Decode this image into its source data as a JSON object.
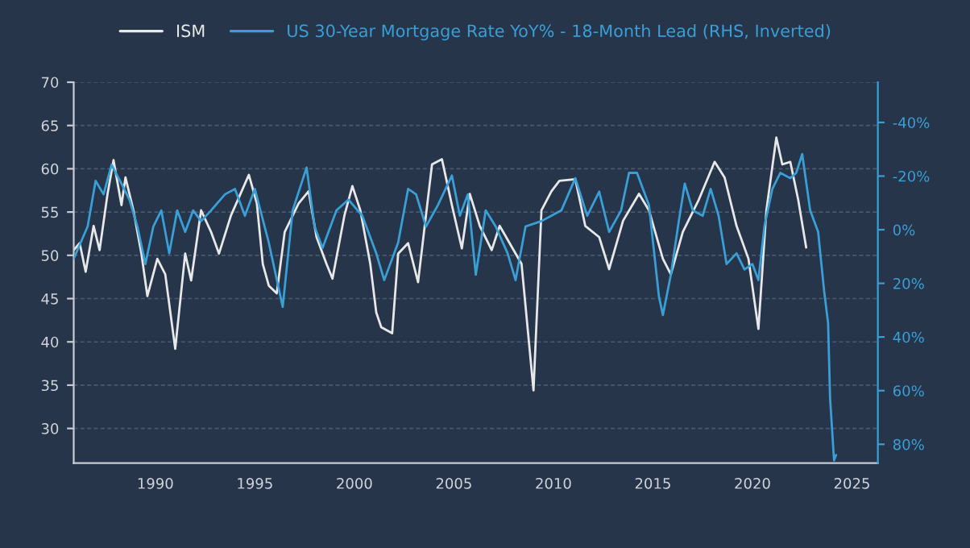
{
  "chart_data": {
    "type": "line",
    "xlim": [
      1985.9,
      2026.3
    ],
    "xticks": [
      1990,
      1995,
      2000,
      2005,
      2010,
      2015,
      2020,
      2025
    ],
    "ylim": [
      26,
      70
    ],
    "yticks": [
      30,
      35,
      40,
      45,
      50,
      55,
      60,
      65,
      70
    ],
    "y2lim": [
      87,
      -55
    ],
    "y2ticks": [
      {
        "value": -40,
        "label": "-40%"
      },
      {
        "value": -20,
        "label": "-20%"
      },
      {
        "value": 0,
        "label": "0%"
      },
      {
        "value": 20,
        "label": "20%"
      },
      {
        "value": 40,
        "label": "40%"
      },
      {
        "value": 60,
        "label": "60%"
      },
      {
        "value": 80,
        "label": "80%"
      }
    ],
    "grid": "y",
    "legend": "top",
    "series": [
      {
        "name": "ISM",
        "color": "#e8e8e8",
        "x": [
          1985.9,
          1986.2,
          1986.5,
          1986.9,
          1987.2,
          1987.6,
          1987.9,
          1988.3,
          1988.5,
          1988.9,
          1989.3,
          1989.6,
          1990.1,
          1990.5,
          1991.0,
          1991.5,
          1991.8,
          1992.3,
          1992.8,
          1993.2,
          1993.8,
          1994.7,
          1995.1,
          1995.4,
          1995.7,
          1996.1,
          1996.5,
          1997.2,
          1997.7,
          1998.1,
          1998.6,
          1998.9,
          1999.5,
          1999.9,
          2000.3,
          2000.8,
          2001.1,
          2001.35,
          2001.9,
          2002.2,
          2002.7,
          2003.2,
          2003.9,
          2004.4,
          2004.9,
          2005.4,
          2005.8,
          2006.3,
          2006.9,
          2007.3,
          2008.4,
          2009.0,
          2009.4,
          2009.9,
          2010.3,
          2011.1,
          2011.6,
          2012.3,
          2012.8,
          2013.5,
          2014.3,
          2014.8,
          2015.5,
          2015.9,
          2016.5,
          2017.3,
          2018.1,
          2018.6,
          2019.2,
          2019.8,
          2020.3,
          2020.7,
          2021.2,
          2021.5,
          2021.9,
          2022.3,
          2022.7
        ],
        "values": [
          50.6,
          51.4,
          48.1,
          53.4,
          50.6,
          57.1,
          61,
          55.8,
          59,
          55.2,
          50.2,
          45.3,
          49.6,
          47.8,
          39.2,
          50.2,
          47.1,
          55.2,
          52.7,
          50.2,
          54.6,
          59.3,
          56,
          49,
          46.5,
          45.6,
          52.7,
          56,
          57.4,
          52.1,
          49,
          47.3,
          54.6,
          58,
          55.2,
          49,
          43.4,
          41.7,
          41,
          50.2,
          51.4,
          46.9,
          60.5,
          61.1,
          55.8,
          50.8,
          57.1,
          53.4,
          50.6,
          53.4,
          49,
          34.4,
          55.2,
          57.4,
          58.6,
          58.8,
          53.4,
          52.1,
          48.4,
          54,
          57.1,
          55.2,
          49.6,
          47.8,
          52.7,
          56.4,
          60.8,
          59,
          53.4,
          49.6,
          41.5,
          55.2,
          63.6,
          60.5,
          60.8,
          56.4,
          50.9
        ]
      },
      {
        "name": "US 30-Year Mortgage Rate YoY% - 18-Month Lead (RHS, Inverted)",
        "color": "#3a9fd6",
        "axis": "y2",
        "x": [
          1985.9,
          1986.6,
          1987.0,
          1987.4,
          1987.8,
          1988.3,
          1988.7,
          1989.1,
          1989.5,
          1989.9,
          1990.3,
          1990.7,
          1991.1,
          1991.5,
          1991.9,
          1992.3,
          1992.8,
          1993.5,
          1994.0,
          1994.5,
          1995.0,
          1995.7,
          1996.4,
          1996.9,
          1997.6,
          1998.0,
          1998.4,
          1999.1,
          1999.7,
          2000.4,
          2001.1,
          2001.5,
          2002.2,
          2002.7,
          2003.1,
          2003.6,
          2004.2,
          2004.9,
          2005.3,
          2005.7,
          2006.1,
          2006.6,
          2007.1,
          2007.7,
          2008.1,
          2008.6,
          2009.4,
          2010.4,
          2011.1,
          2011.7,
          2012.3,
          2012.8,
          2013.4,
          2013.8,
          2014.2,
          2014.8,
          2015.3,
          2015.5,
          2015.9,
          2016.3,
          2016.6,
          2017.0,
          2017.5,
          2017.9,
          2018.3,
          2018.7,
          2019.2,
          2019.6,
          2020.0,
          2020.3,
          2020.6,
          2021.0,
          2021.4,
          2021.9,
          2022.2,
          2022.5,
          2022.9,
          2023.3,
          2023.6,
          2023.8,
          2023.9,
          2024.1,
          2024.2
        ],
        "values": [
          10.8,
          -1.2,
          -18.2,
          -13.2,
          -24.2,
          -17.2,
          -11.2,
          -1.2,
          12.8,
          -1.2,
          -7.2,
          8.8,
          -7.2,
          0.8,
          -7.2,
          -3.2,
          -7.2,
          -13.2,
          -15.2,
          -5.2,
          -15.2,
          4.8,
          28.8,
          -7.2,
          -23.2,
          -1.2,
          6.8,
          -7.2,
          -11.2,
          -5.2,
          8.8,
          18.8,
          4.8,
          -15.2,
          -13.2,
          -1.2,
          -9.2,
          -20.2,
          -5.2,
          -13.2,
          16.8,
          -7.2,
          -1.2,
          8.8,
          18.8,
          -1.2,
          -3.2,
          -7.2,
          -19.2,
          -5.2,
          -14.2,
          0.8,
          -7.2,
          -21.2,
          -21.2,
          -9.2,
          24.8,
          31.8,
          16.8,
          -3.2,
          -17.2,
          -7.2,
          -5.2,
          -15.2,
          -5.2,
          12.8,
          8.8,
          14.8,
          12.8,
          18.8,
          -1.2,
          -15.2,
          -21.2,
          -19.2,
          -21.2,
          -28.2,
          -7.2,
          0.8,
          22.8,
          34.8,
          62.8,
          86,
          84
        ]
      }
    ]
  }
}
